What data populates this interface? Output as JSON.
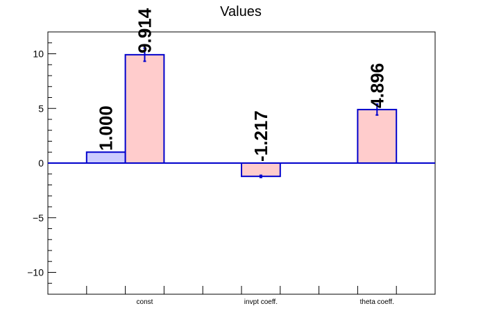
{
  "chart_data": {
    "type": "bar",
    "title": "Values",
    "xlabel": "",
    "ylabel": "",
    "ylim": [
      -12,
      12
    ],
    "yticks": [
      -10,
      -5,
      0,
      5,
      10
    ],
    "categories": [
      "const",
      "invpt coeff.",
      "theta coeff."
    ],
    "grid": false,
    "legend": "none",
    "series": [
      {
        "values": [
          1.0,
          null,
          null
        ],
        "errors": [
          0,
          null,
          null
        ],
        "labels": [
          "1.000",
          "",
          ""
        ],
        "fill": "#ccccff",
        "stroke": "#0000cc",
        "slot": 0
      },
      {
        "values": [
          9.914,
          -1.217,
          4.896
        ],
        "errors": [
          0.6,
          0.1,
          0.5
        ],
        "labels": [
          "9.914",
          "-1.217",
          "4.896"
        ],
        "fill": "#ffcccc",
        "stroke": "#0000cc",
        "slot": 1
      }
    ],
    "colors": {
      "axis": "#000000",
      "zero_line": "#0000cc",
      "error_bar": "#0000cc"
    }
  }
}
